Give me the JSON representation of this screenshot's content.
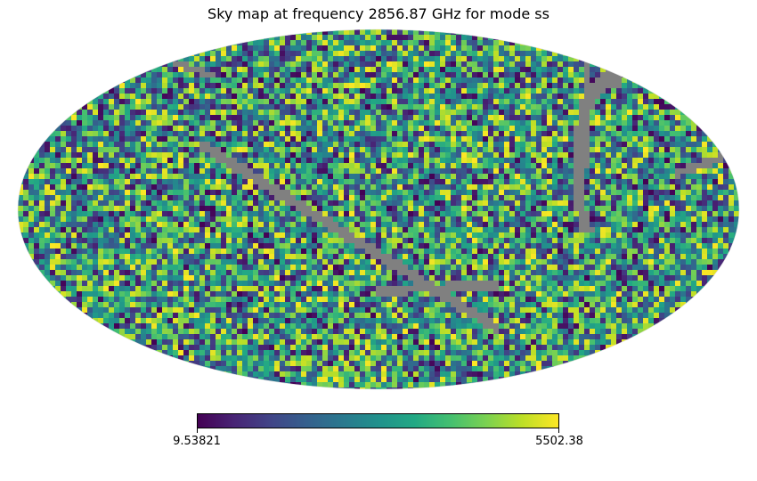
{
  "chart_data": {
    "type": "heatmap",
    "projection": "mollweide",
    "title": "Sky map at frequency 2856.87 GHz for mode ss",
    "colormap": "viridis",
    "bad_color": "#808080",
    "colorbar": {
      "min": 9.53821,
      "max": 5502.38,
      "min_label": "9.53821",
      "max_label": "5502.38",
      "orientation": "horizontal"
    }
  }
}
